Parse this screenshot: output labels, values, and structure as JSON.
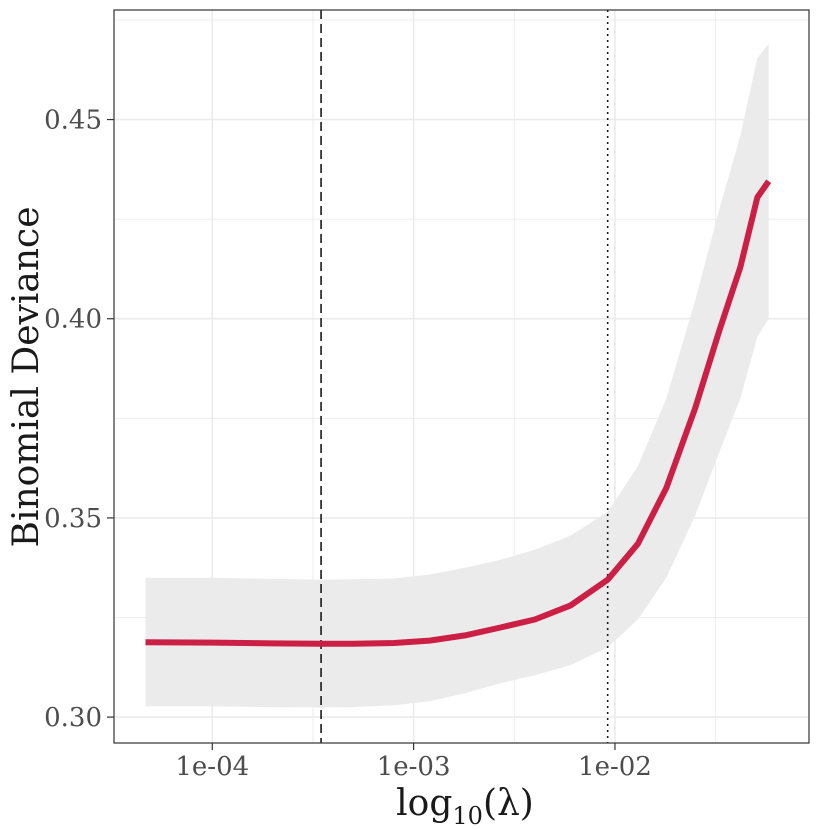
{
  "chart_data": {
    "type": "line",
    "x_scale": "log10",
    "xlabel": {
      "base": "log",
      "subscript": "10",
      "arg": "(λ)"
    },
    "ylabel": "Binomial Deviance",
    "xlim": [
      3.25e-05,
      0.092
    ],
    "ylim": [
      0.2935,
      0.4775
    ],
    "x_ticks": [
      {
        "value": 0.0001,
        "label": "1e-04"
      },
      {
        "value": 0.001,
        "label": "1e-03"
      },
      {
        "value": 0.01,
        "label": "1e-02"
      }
    ],
    "y_ticks": [
      {
        "value": 0.3,
        "label": "0.30"
      },
      {
        "value": 0.35,
        "label": "0.35"
      },
      {
        "value": 0.4,
        "label": "0.40"
      },
      {
        "value": 0.45,
        "label": "0.45"
      }
    ],
    "grid": true,
    "series": [
      {
        "color": "#cc1f45",
        "points": [
          {
            "x": 4.66e-05,
            "y": 0.3188,
            "lower": 0.3027,
            "upper": 0.335
          },
          {
            "x": 0.0001,
            "y": 0.3187,
            "lower": 0.3027,
            "upper": 0.335
          },
          {
            "x": 0.0002,
            "y": 0.3185,
            "lower": 0.3025,
            "upper": 0.3347
          },
          {
            "x": 0.000347,
            "y": 0.3184,
            "lower": 0.3024,
            "upper": 0.3345
          },
          {
            "x": 0.0005,
            "y": 0.3184,
            "lower": 0.3025,
            "upper": 0.3346
          },
          {
            "x": 0.0008,
            "y": 0.3186,
            "lower": 0.303,
            "upper": 0.3348
          },
          {
            "x": 0.0012,
            "y": 0.3192,
            "lower": 0.304,
            "upper": 0.3358
          },
          {
            "x": 0.0018,
            "y": 0.3205,
            "lower": 0.306,
            "upper": 0.3375
          },
          {
            "x": 0.0027,
            "y": 0.3225,
            "lower": 0.3085,
            "upper": 0.3395
          },
          {
            "x": 0.004,
            "y": 0.3245,
            "lower": 0.3105,
            "upper": 0.342
          },
          {
            "x": 0.006,
            "y": 0.328,
            "lower": 0.313,
            "upper": 0.3455
          },
          {
            "x": 0.0092,
            "y": 0.3345,
            "lower": 0.3175,
            "upper": 0.3515
          },
          {
            "x": 0.013,
            "y": 0.3435,
            "lower": 0.3245,
            "upper": 0.363
          },
          {
            "x": 0.018,
            "y": 0.3575,
            "lower": 0.335,
            "upper": 0.38
          },
          {
            "x": 0.025,
            "y": 0.3775,
            "lower": 0.3505,
            "upper": 0.4045
          },
          {
            "x": 0.033,
            "y": 0.397,
            "lower": 0.3665,
            "upper": 0.4275
          },
          {
            "x": 0.042,
            "y": 0.413,
            "lower": 0.38,
            "upper": 0.446
          },
          {
            "x": 0.051,
            "y": 0.4305,
            "lower": 0.3955,
            "upper": 0.4655
          },
          {
            "x": 0.058,
            "y": 0.4345,
            "lower": 0.4,
            "upper": 0.469
          }
        ]
      }
    ],
    "vlines": [
      {
        "x": 0.000347,
        "style": "dashed"
      },
      {
        "x": 0.0092,
        "style": "dotted"
      }
    ],
    "colors": {
      "line": "#cc1f45",
      "band": "#ebebeb",
      "grid": "#ebebeb",
      "panel_border": "#333333"
    }
  }
}
